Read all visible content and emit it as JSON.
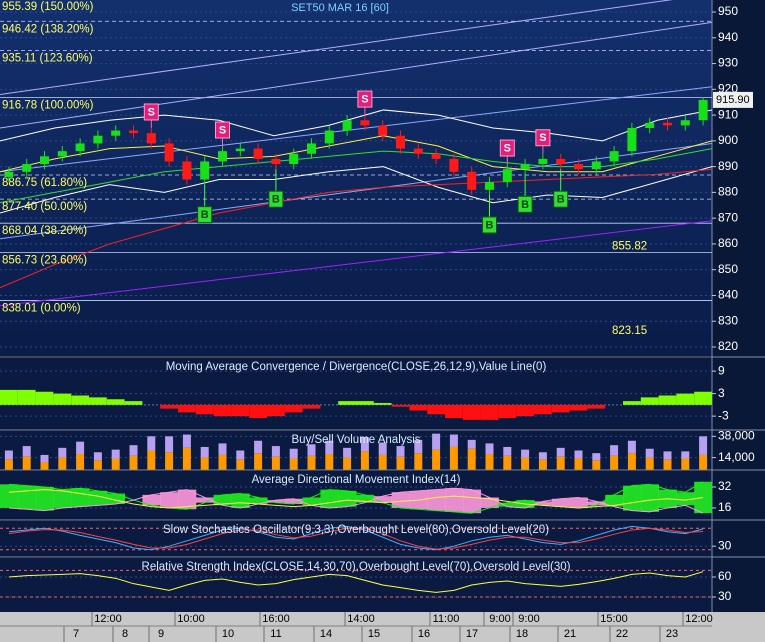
{
  "chart_data": [
    {
      "type": "candlestick",
      "title": "SET50 MAR 16  [60]",
      "open": [
        886,
        888,
        891,
        894,
        896,
        899,
        902,
        904,
        903,
        899,
        892,
        885,
        892,
        896,
        897,
        893,
        891,
        895,
        899,
        904,
        908,
        906,
        902,
        897,
        895,
        893,
        888,
        881,
        884,
        889,
        891,
        893,
        891,
        889,
        892,
        896,
        905,
        907,
        906,
        908
      ],
      "high": [
        890,
        893,
        896,
        898,
        901,
        904,
        906,
        906,
        905,
        901,
        894,
        894,
        898,
        899,
        899,
        895,
        897,
        901,
        906,
        910,
        910,
        908,
        904,
        899,
        897,
        895,
        890,
        886,
        891,
        893,
        895,
        895,
        893,
        894,
        898,
        907,
        909,
        909,
        910,
        917
      ],
      "low": [
        884,
        886,
        889,
        892,
        894,
        897,
        900,
        901,
        897,
        890,
        883,
        883,
        890,
        894,
        891,
        889,
        889,
        893,
        897,
        902,
        904,
        900,
        895,
        893,
        891,
        886,
        879,
        879,
        882,
        887,
        889,
        889,
        887,
        887,
        890,
        894,
        903,
        904,
        904,
        906
      ],
      "close": [
        888,
        891,
        894,
        896,
        899,
        902,
        904,
        903,
        899,
        892,
        885,
        892,
        896,
        897,
        893,
        891,
        895,
        899,
        904,
        908,
        906,
        902,
        897,
        895,
        893,
        888,
        881,
        884,
        889,
        891,
        893,
        891,
        889,
        892,
        896,
        905,
        907,
        906,
        908,
        915.9
      ],
      "colors": {
        "up": "#18e018",
        "down": "#ff1a1a"
      },
      "ylim": [
        816.5,
        954.67
      ],
      "yticks": [
        820,
        830,
        840,
        850,
        860,
        870,
        880,
        890,
        900,
        910,
        920,
        930,
        940,
        950
      ],
      "last_price": {
        "value": 915.9,
        "label": "915.90"
      },
      "fib_levels": [
        {
          "value": 955.39,
          "label": "955.39 (150.00%)",
          "style": "dashed"
        },
        {
          "value": 946.42,
          "label": "946.42 (138.20%)",
          "style": "dashed"
        },
        {
          "value": 935.11,
          "label": "935.11 (123.60%)",
          "style": "dashed"
        },
        {
          "value": 916.78,
          "label": "916.78 (100.00%)",
          "style": "solid"
        },
        {
          "value": 886.75,
          "label": "886.75 (61.80%)",
          "style": "dashed"
        },
        {
          "value": 877.4,
          "label": "877.40 (50.00%)",
          "style": "dashed"
        },
        {
          "value": 868.04,
          "label": "868.04 (38.20%)",
          "style": "solid"
        },
        {
          "value": 856.73,
          "label": "856.73 (23.60%)",
          "style": "solid"
        },
        {
          "value": 838.01,
          "label": "838.01 (0.00%)",
          "style": "solid"
        }
      ],
      "price_labels": [
        855.82,
        823.15
      ],
      "overlays": [
        {
          "color": "#ffffff",
          "values": [
            900,
            905,
            908,
            910,
            908,
            902,
            906,
            912,
            910,
            905,
            903,
            900,
            908,
            912
          ]
        },
        {
          "color": "#ffffff",
          "values": [
            872,
            878,
            883,
            880,
            885,
            885,
            888,
            890,
            882,
            876,
            879,
            878,
            884,
            890
          ]
        },
        {
          "color": "#ffee44",
          "values": [
            888,
            893,
            897,
            898,
            893,
            894,
            898,
            902,
            898,
            890,
            888,
            888,
            894,
            900
          ]
        },
        {
          "color": "#33dd33",
          "values": [
            876,
            880,
            884,
            888,
            890,
            892,
            894,
            896,
            895,
            892,
            890,
            890,
            893,
            897
          ]
        },
        {
          "color": "#ff2020",
          "values": [
            843,
            852,
            860,
            866,
            872,
            876,
            880,
            882,
            883,
            884,
            885,
            886,
            887,
            889
          ]
        }
      ],
      "trend_lines": [
        {
          "color": "#b0b0ff",
          "values": [
            918,
            957
          ]
        },
        {
          "color": "#b0b0ff",
          "values": [
            905,
            946
          ]
        },
        {
          "color": "#8fa8ff",
          "values": [
            888,
            921
          ]
        },
        {
          "color": "#8fa8ff",
          "values": [
            862,
            899
          ]
        },
        {
          "color": "#a020ff",
          "values": [
            836,
            869
          ]
        }
      ],
      "signals": [
        {
          "label": "S",
          "candle": 8
        },
        {
          "label": "S",
          "candle": 12
        },
        {
          "label": "S",
          "candle": 20
        },
        {
          "label": "S",
          "candle": 28
        },
        {
          "label": "S",
          "candle": 30
        },
        {
          "label": "B",
          "candle": 11
        },
        {
          "label": "B",
          "candle": 15
        },
        {
          "label": "B",
          "candle": 27
        },
        {
          "label": "B",
          "candle": 29
        },
        {
          "label": "B",
          "candle": 31
        }
      ]
    },
    {
      "type": "bar",
      "title": "Moving Average Convergence / Divergence(CLOSE,26,12,9),Value Line(0)",
      "values": [
        4,
        4,
        3.5,
        3,
        2.5,
        2,
        1.5,
        1,
        0,
        -1,
        -2,
        -2.5,
        -3,
        -3,
        -3.5,
        -3,
        -2,
        -1,
        0,
        1,
        1,
        0.5,
        -0.5,
        -1.5,
        -2.5,
        -3.5,
        -4,
        -4,
        -3.5,
        -3,
        -2.5,
        -2,
        -1.5,
        -1,
        0,
        1,
        2,
        2.5,
        3,
        3.5
      ],
      "colors": {
        "positive": "#80ff00",
        "negative": "#ff1010"
      },
      "ylim": [
        -6.7,
        12.5
      ],
      "yticks": [
        9,
        3,
        -3
      ]
    },
    {
      "type": "stacked_bar",
      "title": "Buy/Sell Volume Analysis",
      "series": [
        {
          "color": "#ff9900",
          "values": [
            12000,
            15000,
            9000,
            14000,
            18000,
            11000,
            13000,
            16000,
            22000,
            20000,
            25000,
            14000,
            17000,
            12000,
            19000,
            15000,
            13000,
            16000,
            18000,
            14000,
            21000,
            17000,
            15000,
            19000,
            23000,
            26000,
            24000,
            18000,
            16000,
            14000,
            12000,
            15000,
            13000,
            11000,
            16000,
            19000,
            14000,
            12000,
            13000,
            17000
          ]
        },
        {
          "color": "#b8a0f0",
          "values": [
            10000,
            12000,
            8000,
            11000,
            14000,
            9000,
            10000,
            12000,
            16000,
            18000,
            15000,
            12000,
            13000,
            10000,
            14000,
            12000,
            11000,
            13000,
            15000,
            11000,
            16000,
            14000,
            12000,
            15000,
            18000,
            14000,
            10000,
            12000,
            10000,
            9000,
            8000,
            10000,
            9000,
            8000,
            12000,
            14000,
            10000,
            9000,
            8000,
            21000
          ]
        }
      ],
      "ylim": [
        0,
        44000
      ],
      "yticks": [
        {
          "value": 38000,
          "label": "38,000"
        },
        {
          "value": 14000,
          "label": "14,000"
        }
      ]
    },
    {
      "type": "line",
      "title": "Average Directional Movement Index(14)",
      "series": [
        {
          "color": "#00ff00",
          "values": [
            34,
            33,
            32,
            30,
            31,
            29,
            27,
            22,
            18,
            16,
            15,
            20,
            26,
            27,
            24,
            20,
            19,
            24,
            30,
            29,
            26,
            20,
            16,
            15,
            14,
            13,
            12,
            16,
            20,
            22,
            18,
            17,
            16,
            18,
            26,
            33,
            34,
            30,
            28,
            36
          ]
        },
        {
          "color": "#ff99dd",
          "values": [
            16,
            15,
            14,
            16,
            17,
            18,
            19,
            22,
            26,
            28,
            30,
            24,
            18,
            16,
            19,
            22,
            23,
            18,
            16,
            17,
            20,
            25,
            28,
            29,
            30,
            31,
            30,
            24,
            17,
            16,
            21,
            23,
            24,
            21,
            17,
            14,
            13,
            16,
            18,
            12
          ]
        },
        {
          "color": "#ffee44",
          "values": [
            28,
            29,
            30,
            29,
            27,
            25,
            22,
            19,
            17,
            16,
            17,
            18,
            19,
            20,
            19,
            18,
            17,
            18,
            20,
            22,
            21,
            20,
            21,
            22,
            24,
            25,
            24,
            23,
            21,
            19,
            18,
            17,
            16,
            17,
            18,
            20,
            22,
            23,
            22,
            24
          ]
        }
      ],
      "fill": {
        "above": "#22ee22",
        "below": "#ff99dd"
      },
      "ylim": [
        6.8,
        44.2
      ],
      "yticks": [
        32,
        16
      ]
    },
    {
      "type": "line",
      "title": "Slow Stochastics Oscillator(9,3,3),Overbought Level(80),Oversold Level(20)",
      "series": [
        {
          "color": "#40b0ff",
          "values": [
            70,
            75,
            80,
            72,
            60,
            50,
            40,
            25,
            20,
            30,
            45,
            60,
            75,
            80,
            70,
            55,
            50,
            65,
            80,
            85,
            75,
            55,
            35,
            25,
            20,
            30,
            45,
            55,
            60,
            50,
            40,
            35,
            45,
            60,
            75,
            85,
            80,
            70,
            65,
            78
          ]
        },
        {
          "color": "#ff4040",
          "values": [
            65,
            72,
            76,
            75,
            68,
            57,
            47,
            35,
            25,
            25,
            35,
            50,
            65,
            75,
            75,
            62,
            53,
            58,
            70,
            80,
            80,
            65,
            45,
            30,
            22,
            25,
            35,
            47,
            55,
            55,
            47,
            40,
            40,
            50,
            63,
            75,
            80,
            75,
            68,
            71
          ]
        }
      ],
      "levels": [
        80,
        20
      ],
      "ylim": [
        0,
        100
      ],
      "yticks": [
        30
      ]
    },
    {
      "type": "line",
      "title": "Relative Strength Index(CLOSE,14,30,70),Overbought Level(70),Oversold Level(30)",
      "series": [
        {
          "color": "#ffff40",
          "values": [
            60,
            62,
            63,
            64,
            65,
            62,
            58,
            50,
            45,
            40,
            48,
            55,
            57,
            52,
            48,
            50,
            56,
            60,
            64,
            62,
            55,
            48,
            44,
            40,
            37,
            40,
            48,
            52,
            54,
            50,
            48,
            46,
            49,
            53,
            58,
            64,
            66,
            62,
            60,
            68
          ]
        }
      ],
      "levels": [
        70,
        30
      ],
      "ylim": [
        7.5,
        88.5
      ],
      "yticks": [
        60,
        30
      ]
    }
  ],
  "x_axis": {
    "times": [
      "12:00",
      "10:00",
      "16:00",
      "14:00",
      "11:00",
      "9:00",
      "9:00",
      "15:00",
      "12:00"
    ],
    "days": [
      "7",
      "8",
      "9",
      "10",
      "11",
      "14",
      "15",
      "16",
      "17",
      "18",
      "21",
      "22",
      "23"
    ]
  }
}
